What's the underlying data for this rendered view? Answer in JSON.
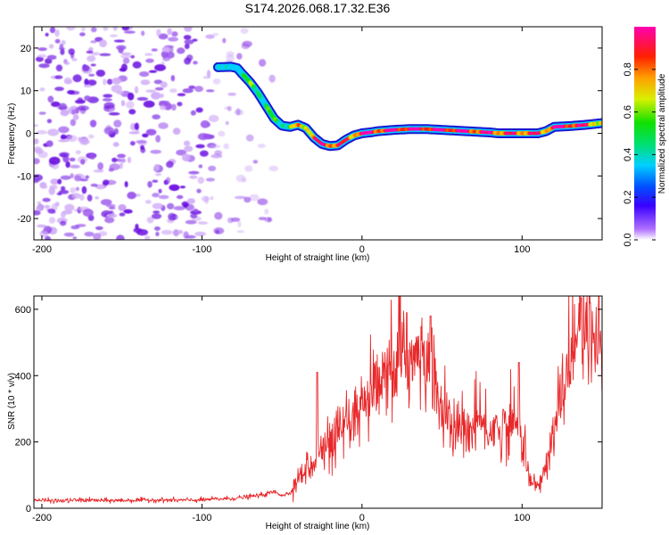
{
  "figure_title": "S174.2026.068.17.32.E36",
  "colors": {
    "snr_line": "#e8282a",
    "ridge_edge": "#0000cd",
    "noise_strong": "#6a0ee0",
    "noise_mid": "#9a55ec",
    "noise_light": "#cfaaf6"
  },
  "chart_data": [
    {
      "type": "heatmap",
      "name": "spectrogram",
      "xlabel": "Height of straight line (km)",
      "ylabel": "Frequency (Hz)",
      "xlim": [
        -205,
        150
      ],
      "ylim": [
        -25,
        25
      ],
      "xticks": [
        -200,
        -100,
        0,
        100
      ],
      "yticks": [
        20,
        10,
        0,
        -10,
        -20
      ],
      "colorbar": {
        "label": "Normalized spectral amplitude",
        "range": [
          0,
          1
        ],
        "ticks": [
          0.0,
          0.2,
          0.4,
          0.6,
          0.8
        ]
      },
      "noise_region_x": [
        -205,
        -55
      ],
      "ridge": {
        "x": [
          -90,
          -82,
          -78,
          -75,
          -70,
          -65,
          -60,
          -55,
          -50,
          -45,
          -40,
          -35,
          -30,
          -25,
          -20,
          -15,
          -10,
          -5,
          0,
          5,
          10,
          20,
          30,
          40,
          50,
          60,
          70,
          80,
          85,
          90,
          100,
          110,
          115,
          120,
          130,
          140,
          150
        ],
        "y": [
          15.5,
          15.6,
          15.3,
          14.0,
          12.0,
          9.5,
          6.5,
          3.5,
          1.8,
          1.5,
          2.0,
          1.2,
          -1.0,
          -2.5,
          -3.0,
          -2.8,
          -1.5,
          -0.5,
          0.0,
          0.2,
          0.5,
          0.8,
          1.0,
          1.0,
          0.8,
          0.6,
          0.4,
          0.2,
          0.0,
          0.0,
          0.0,
          0.0,
          0.5,
          1.5,
          1.7,
          2.0,
          2.4
        ],
        "amplitude": [
          0.25,
          0.28,
          0.3,
          0.35,
          0.5,
          0.55,
          0.45,
          0.45,
          0.5,
          0.5,
          0.7,
          0.75,
          0.8,
          0.9,
          0.9,
          0.85,
          0.8,
          0.8,
          0.95,
          0.95,
          0.9,
          0.95,
          0.95,
          0.95,
          0.95,
          0.95,
          0.9,
          0.9,
          0.85,
          0.85,
          0.85,
          0.85,
          0.8,
          0.95,
          0.95,
          0.85,
          0.7
        ]
      }
    },
    {
      "type": "line",
      "name": "snr",
      "xlabel": "Height of straight line (km)",
      "ylabel": "SNR (10 * v/v)",
      "xlim": [
        -205,
        150
      ],
      "ylim": [
        0,
        640
      ],
      "xticks": [
        -200,
        -100,
        0,
        100
      ],
      "yticks": [
        0,
        200,
        400,
        600
      ],
      "series": [
        {
          "name": "SNR",
          "x": [
            -205,
            -190,
            -175,
            -160,
            -145,
            -130,
            -115,
            -100,
            -90,
            -80,
            -70,
            -60,
            -55,
            -50,
            -45,
            -40,
            -35,
            -30,
            -25,
            -20,
            -15,
            -10,
            -5,
            0,
            5,
            10,
            15,
            20,
            25,
            30,
            35,
            40,
            45,
            50,
            55,
            60,
            65,
            70,
            75,
            80,
            85,
            90,
            95,
            100,
            103,
            106,
            110,
            115,
            120,
            125,
            130,
            135,
            140,
            145,
            150
          ],
          "y": [
            25,
            22,
            25,
            23,
            24,
            25,
            24,
            25,
            28,
            30,
            35,
            42,
            50,
            40,
            45,
            85,
            120,
            150,
            170,
            190,
            200,
            230,
            260,
            290,
            320,
            350,
            380,
            420,
            440,
            450,
            440,
            430,
            390,
            300,
            240,
            235,
            225,
            245,
            255,
            235,
            240,
            240,
            255,
            215,
            130,
            70,
            65,
            120,
            230,
            350,
            460,
            520,
            500,
            480,
            470
          ]
        }
      ],
      "peaks": {
        "x": [
          -28,
          28,
          43,
          98,
          137,
          148
        ],
        "y": [
          410,
          590,
          580,
          440,
          635,
          650
        ]
      }
    }
  ]
}
